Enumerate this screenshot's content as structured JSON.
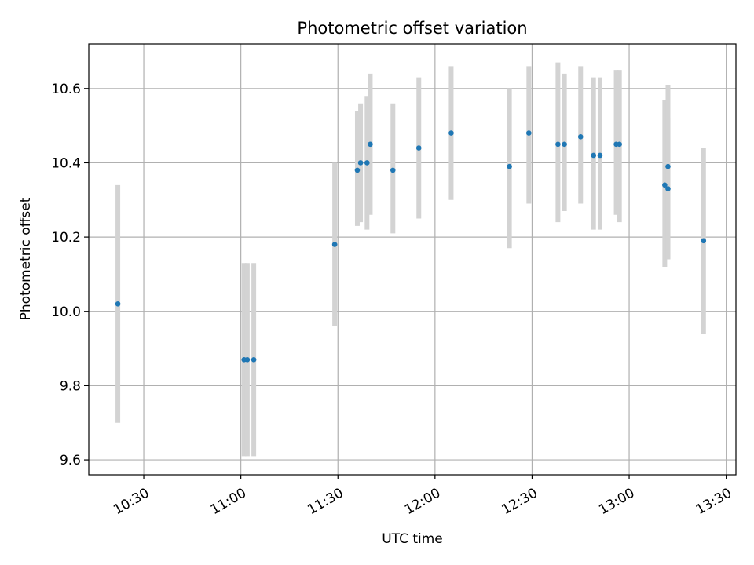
{
  "chart_data": {
    "type": "scatter",
    "title": "Photometric offset variation",
    "xlabel": "UTC time",
    "ylabel": "Photometric offset",
    "xlim": [
      "10:13",
      "13:33"
    ],
    "ylim": [
      9.56,
      10.72
    ],
    "x_ticks": [
      "10:30",
      "11:00",
      "11:30",
      "12:00",
      "12:30",
      "13:00",
      "13:30"
    ],
    "y_ticks": [
      9.6,
      9.8,
      10.0,
      10.2,
      10.4,
      10.6
    ],
    "y_tick_labels": [
      "9.6",
      "9.8",
      "10.0",
      "10.2",
      "10.4",
      "10.6"
    ],
    "grid": true,
    "colors": {
      "marker": "#1f77b4",
      "errorbar": "#d3d3d3",
      "grid": "#b0b0b0"
    },
    "series": [
      {
        "points": [
          {
            "x": "10:22",
            "y": 10.02,
            "ylo": 9.7,
            "yhi": 10.34
          },
          {
            "x": "11:01",
            "y": 9.87,
            "ylo": 9.61,
            "yhi": 10.13
          },
          {
            "x": "11:02",
            "y": 9.87,
            "ylo": 9.61,
            "yhi": 10.13
          },
          {
            "x": "11:04",
            "y": 9.87,
            "ylo": 9.61,
            "yhi": 10.13
          },
          {
            "x": "11:29",
            "y": 10.18,
            "ylo": 9.96,
            "yhi": 10.4
          },
          {
            "x": "11:36",
            "y": 10.38,
            "ylo": 10.23,
            "yhi": 10.54
          },
          {
            "x": "11:37",
            "y": 10.4,
            "ylo": 10.24,
            "yhi": 10.56
          },
          {
            "x": "11:39",
            "y": 10.4,
            "ylo": 10.22,
            "yhi": 10.58
          },
          {
            "x": "11:40",
            "y": 10.45,
            "ylo": 10.26,
            "yhi": 10.64
          },
          {
            "x": "11:47",
            "y": 10.38,
            "ylo": 10.21,
            "yhi": 10.56
          },
          {
            "x": "11:55",
            "y": 10.44,
            "ylo": 10.25,
            "yhi": 10.63
          },
          {
            "x": "12:05",
            "y": 10.48,
            "ylo": 10.3,
            "yhi": 10.66
          },
          {
            "x": "12:23",
            "y": 10.39,
            "ylo": 10.17,
            "yhi": 10.6
          },
          {
            "x": "12:29",
            "y": 10.48,
            "ylo": 10.29,
            "yhi": 10.66
          },
          {
            "x": "12:38",
            "y": 10.45,
            "ylo": 10.24,
            "yhi": 10.67
          },
          {
            "x": "12:40",
            "y": 10.45,
            "ylo": 10.27,
            "yhi": 10.64
          },
          {
            "x": "12:45",
            "y": 10.47,
            "ylo": 10.29,
            "yhi": 10.66
          },
          {
            "x": "12:49",
            "y": 10.42,
            "ylo": 10.22,
            "yhi": 10.63
          },
          {
            "x": "12:51",
            "y": 10.42,
            "ylo": 10.22,
            "yhi": 10.63
          },
          {
            "x": "12:56",
            "y": 10.45,
            "ylo": 10.26,
            "yhi": 10.65
          },
          {
            "x": "12:57",
            "y": 10.45,
            "ylo": 10.24,
            "yhi": 10.65
          },
          {
            "x": "13:11",
            "y": 10.34,
            "ylo": 10.12,
            "yhi": 10.57
          },
          {
            "x": "13:12",
            "y": 10.39,
            "ylo": 10.14,
            "yhi": 10.61
          },
          {
            "x": "13:12",
            "y": 10.33,
            "ylo": 10.14,
            "yhi": 10.52
          },
          {
            "x": "13:23",
            "y": 10.19,
            "ylo": 9.94,
            "yhi": 10.44
          }
        ]
      }
    ]
  }
}
